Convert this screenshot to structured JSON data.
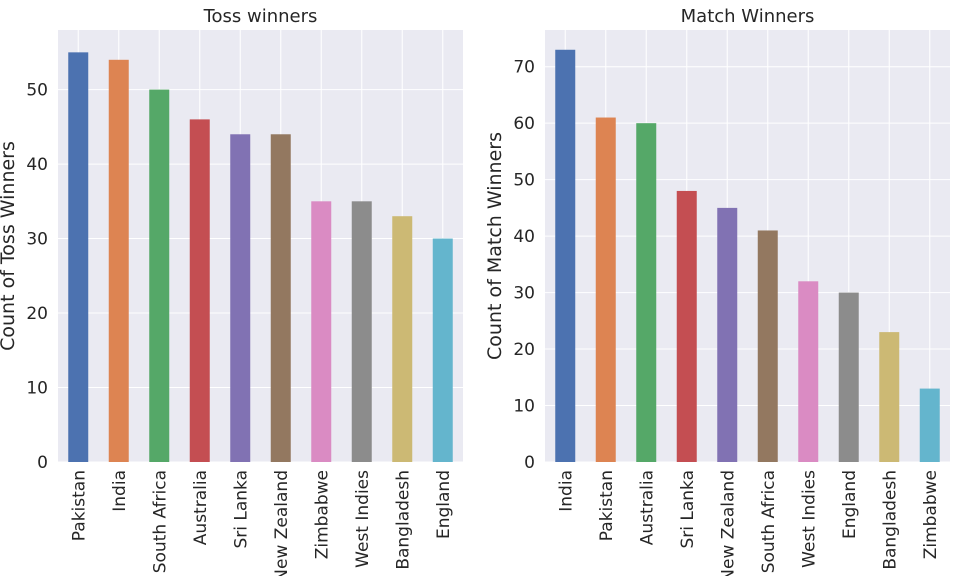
{
  "chart_data": [
    {
      "type": "bar",
      "title": "Toss winners",
      "xlabel": "",
      "ylabel": "Count of Toss Winners",
      "categories": [
        "Pakistan",
        "India",
        "South Africa",
        "Australia",
        "Sri Lanka",
        "New Zealand",
        "Zimbabwe",
        "West Indies",
        "Bangladesh",
        "England"
      ],
      "values": [
        55,
        54,
        50,
        46,
        44,
        44,
        35,
        35,
        33,
        30
      ],
      "ylim": [
        0,
        58
      ],
      "yticks": [
        0,
        10,
        20,
        30,
        40,
        50
      ],
      "grid": true,
      "colors": [
        "#4c72b0",
        "#dd8452",
        "#55a868",
        "#c44e52",
        "#8172b3",
        "#937860",
        "#da8bc3",
        "#8c8c8c",
        "#ccb974",
        "#64b5cd"
      ]
    },
    {
      "type": "bar",
      "title": "Match Winners",
      "xlabel": "",
      "ylabel": "Count of Match Winners",
      "categories": [
        "India",
        "Pakistan",
        "Australia",
        "Sri Lanka",
        "New Zealand",
        "South Africa",
        "West Indies",
        "England",
        "Bangladesh",
        "Zimbabwe"
      ],
      "values": [
        73,
        61,
        60,
        48,
        45,
        41,
        32,
        30,
        23,
        13
      ],
      "ylim": [
        0,
        76.5
      ],
      "yticks": [
        0,
        10,
        20,
        30,
        40,
        50,
        60,
        70
      ],
      "grid": true,
      "colors": [
        "#4c72b0",
        "#dd8452",
        "#55a868",
        "#c44e52",
        "#8172b3",
        "#937860",
        "#da8bc3",
        "#8c8c8c",
        "#ccb974",
        "#64b5cd"
      ]
    }
  ]
}
